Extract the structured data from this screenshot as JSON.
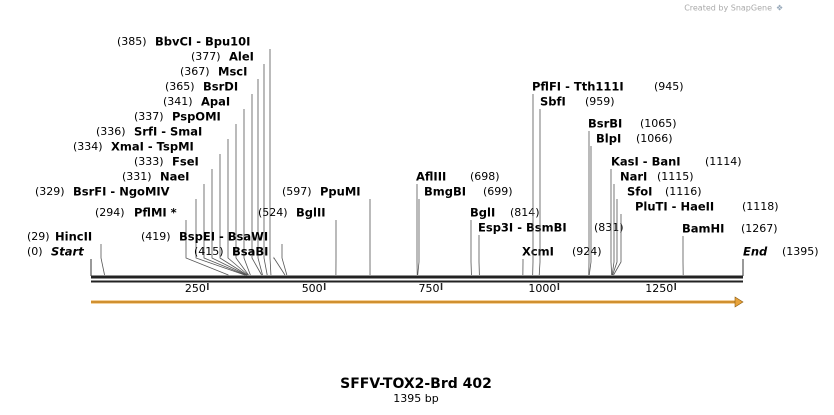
{
  "credit": "Created by SnapGene",
  "title": "SFFV-TOX2-Brd 402",
  "subtitle": "1395 bp",
  "ruler_ticks": [
    250,
    500,
    750,
    1000,
    1250
  ],
  "sites": [
    {
      "name": "BbvCI  - Bpu10I",
      "position": {
        "value": 385,
        "label": "(385)"
      }
    },
    {
      "name": "AleI",
      "position": {
        "value": 377,
        "label": "(377)"
      }
    },
    {
      "name": "MscI",
      "position": {
        "value": 367,
        "label": "(367)"
      }
    },
    {
      "name": "BsrDI",
      "position": {
        "value": 365,
        "label": "(365)"
      }
    },
    {
      "name": "ApaI",
      "position": {
        "value": 341,
        "label": "(341)"
      }
    },
    {
      "name": "PspOMI",
      "position": {
        "value": 337,
        "label": "(337)"
      }
    },
    {
      "name": "SrfI  - SmaI",
      "position": {
        "value": 336,
        "label": "(336)"
      }
    },
    {
      "name": "XmaI  - TspMI",
      "position": {
        "value": 334,
        "label": "(334)"
      }
    },
    {
      "name": "FseI",
      "position": {
        "value": 333,
        "label": "(333)"
      }
    },
    {
      "name": "NaeI",
      "position": {
        "value": 331,
        "label": "(331)"
      }
    },
    {
      "name": "BsrFI  - NgoMIV",
      "position": {
        "value": 329,
        "label": "(329)"
      }
    },
    {
      "name": "PflMI *",
      "position": {
        "value": 294,
        "label": "(294)"
      }
    },
    {
      "name": "BspEI  - BsaWI",
      "position": {
        "value": 419,
        "label": "(419)"
      }
    },
    {
      "name": "BsaBI",
      "position": {
        "value": 415,
        "label": "(415)"
      }
    },
    {
      "name": "HincII",
      "position": {
        "value": 29,
        "label": "(29)"
      }
    },
    {
      "name": "Start",
      "position": {
        "value": 0,
        "label": "(0)"
      }
    },
    {
      "name": "BglII",
      "position": {
        "value": 524,
        "label": "(524)"
      }
    },
    {
      "name": "PpuMI",
      "position": {
        "value": 597,
        "label": "(597)"
      }
    },
    {
      "name": "AflIII",
      "position": {
        "value": 698,
        "label": "(698)"
      }
    },
    {
      "name": "BmgBI",
      "position": {
        "value": 699,
        "label": "(699)"
      }
    },
    {
      "name": "BglI",
      "position": {
        "value": 814,
        "label": "(814)"
      }
    },
    {
      "name": "Esp3I  - BsmBI",
      "position": {
        "value": 831,
        "label": "(831)"
      }
    },
    {
      "name": "XcmI",
      "position": {
        "value": 924,
        "label": "(924)"
      }
    },
    {
      "name": "PflFI  - Tth111I",
      "position": {
        "value": 945,
        "label": "(945)"
      }
    },
    {
      "name": "SbfI",
      "position": {
        "value": 959,
        "label": "(959)"
      }
    },
    {
      "name": "BsrBI",
      "position": {
        "value": 1065,
        "label": "(1065)"
      }
    },
    {
      "name": "BlpI",
      "position": {
        "value": 1066,
        "label": "(1066)"
      }
    },
    {
      "name": "KasI  - BanI",
      "position": {
        "value": 1114,
        "label": "(1114)"
      }
    },
    {
      "name": "NarI",
      "position": {
        "value": 1115,
        "label": "(1115)"
      }
    },
    {
      "name": "SfoI",
      "position": {
        "value": 1116,
        "label": "(1116)"
      }
    },
    {
      "name": "PluTI  - HaeII",
      "position": {
        "value": 1118,
        "label": "(1118)"
      }
    },
    {
      "name": "BamHI",
      "position": {
        "value": 1267,
        "label": "(1267)"
      }
    },
    {
      "name": "End",
      "position": {
        "value": 1395,
        "label": "(1395)"
      }
    }
  ]
}
